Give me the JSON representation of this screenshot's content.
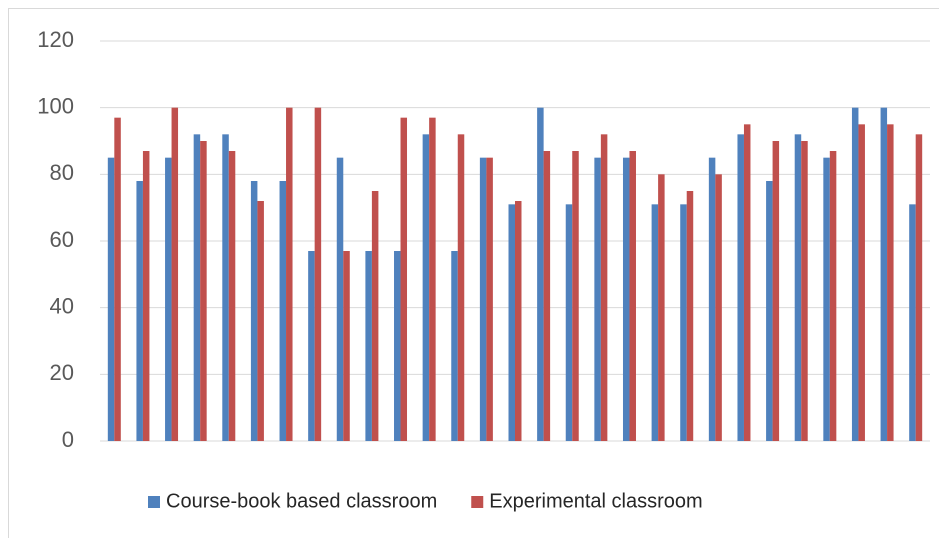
{
  "chart_data": {
    "type": "bar",
    "categories": [
      null,
      null,
      null,
      null,
      null,
      null,
      null,
      null,
      null,
      null,
      null,
      null,
      null,
      null,
      null,
      null,
      null,
      null,
      null,
      null,
      null,
      null,
      null,
      null,
      null,
      null,
      null,
      null,
      null
    ],
    "series": [
      {
        "name": "Course-book based classroom",
        "color": "#4f81bd",
        "values": [
          85,
          78,
          85,
          92,
          92,
          78,
          78,
          57,
          85,
          57,
          57,
          92,
          57,
          85,
          71,
          100,
          71,
          85,
          85,
          71,
          71,
          85,
          92,
          78,
          92,
          85,
          100,
          100,
          71
        ]
      },
      {
        "name": "Experimental classroom",
        "color": "#c0504d",
        "values": [
          97,
          87,
          100,
          90,
          87,
          72,
          100,
          100,
          57,
          75,
          97,
          97,
          92,
          85,
          72,
          87,
          87,
          92,
          87,
          80,
          75,
          80,
          95,
          90,
          90,
          87,
          95,
          95,
          92
        ]
      }
    ],
    "ylim": [
      0,
      120
    ],
    "yticks": [
      0,
      20,
      40,
      60,
      80,
      100,
      120
    ],
    "grid": true,
    "legend": "bottom"
  }
}
